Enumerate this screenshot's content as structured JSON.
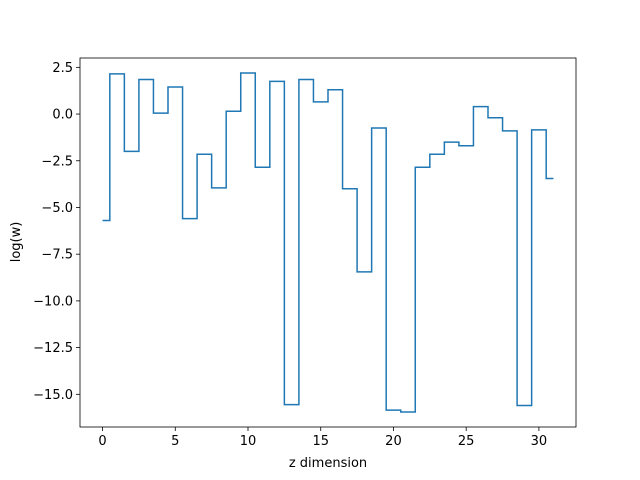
{
  "chart_data": {
    "type": "line",
    "drawstyle": "steps-mid",
    "title": "",
    "xlabel": "z dimension",
    "ylabel": "log(w)",
    "xlim": [
      -1.55,
      32.55
    ],
    "ylim": [
      -16.75,
      3.0
    ],
    "xticks": [
      0,
      5,
      10,
      15,
      20,
      25,
      30
    ],
    "xtick_labels": [
      "0",
      "5",
      "10",
      "15",
      "20",
      "25",
      "30"
    ],
    "yticks": [
      2.5,
      0.0,
      -2.5,
      -5.0,
      -7.5,
      -10.0,
      -12.5,
      -15.0
    ],
    "ytick_labels": [
      "2.5",
      "0.0",
      "−2.5",
      "−5.0",
      "−7.5",
      "−10.0",
      "−12.5",
      "−15.0"
    ],
    "grid": false,
    "color": "#1f77b4",
    "series": [
      {
        "x": [
          0,
          1,
          2,
          3,
          4,
          5,
          6,
          7,
          8,
          9,
          10,
          11,
          12,
          13,
          14,
          15,
          16,
          17,
          18,
          19,
          20,
          21,
          22,
          23,
          24,
          25,
          26,
          27,
          28,
          29,
          30,
          31
        ],
        "values": [
          -5.7,
          2.15,
          -2.0,
          1.85,
          0.05,
          1.45,
          -5.6,
          -2.15,
          -3.95,
          0.15,
          2.2,
          -2.85,
          1.75,
          -15.55,
          1.85,
          0.65,
          1.3,
          -4.0,
          -8.45,
          -0.75,
          -15.85,
          -15.95,
          -2.85,
          -2.15,
          -1.5,
          -1.7,
          0.4,
          -0.2,
          -0.9,
          -15.6,
          -0.85,
          -3.45
        ]
      }
    ]
  }
}
